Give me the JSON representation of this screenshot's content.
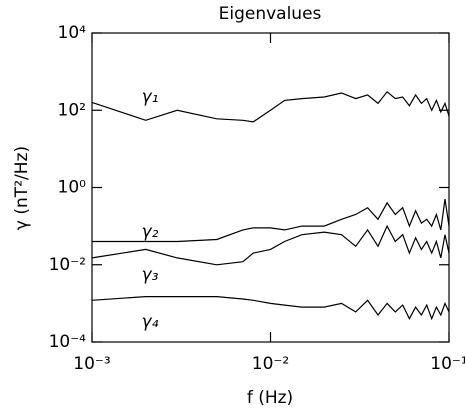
{
  "chart_data": {
    "type": "line",
    "title": "Eigenvalues",
    "x_label": "f (Hz)",
    "y_label": "γ (nT²/Hz)",
    "xscale": "log",
    "yscale": "log",
    "xlim": [
      0.001,
      0.1
    ],
    "ylim": [
      0.0001,
      10000
    ],
    "xticks": [
      {
        "value": 0.001,
        "label": "10⁻³"
      },
      {
        "value": 0.01,
        "label": "10⁻²"
      },
      {
        "value": 0.1,
        "label": "10⁻¹"
      }
    ],
    "yticks": [
      {
        "value": 0.0001,
        "label": "10⁻⁴"
      },
      {
        "value": 0.01,
        "label": "10⁻²"
      },
      {
        "value": 1,
        "label": "10⁰"
      },
      {
        "value": 100,
        "label": "10²"
      },
      {
        "value": 10000,
        "label": "10⁴"
      }
    ],
    "x": [
      0.001,
      0.002,
      0.003,
      0.005,
      0.007,
      0.008,
      0.01,
      0.012,
      0.015,
      0.02,
      0.025,
      0.03,
      0.035,
      0.04,
      0.045,
      0.05,
      0.055,
      0.06,
      0.065,
      0.07,
      0.075,
      0.08,
      0.085,
      0.09,
      0.095,
      0.1
    ],
    "series": [
      {
        "name": "γ₁",
        "color": "#000000",
        "values": [
          160,
          55,
          100,
          60,
          55,
          50,
          100,
          180,
          200,
          220,
          280,
          200,
          250,
          150,
          300,
          200,
          220,
          130,
          250,
          150,
          200,
          100,
          180,
          90,
          150,
          70
        ]
      },
      {
        "name": "γ₂",
        "color": "#000000",
        "values": [
          0.04,
          0.04,
          0.04,
          0.045,
          0.08,
          0.09,
          0.09,
          0.08,
          0.1,
          0.1,
          0.15,
          0.2,
          0.3,
          0.15,
          0.4,
          0.2,
          0.3,
          0.1,
          0.25,
          0.12,
          0.15,
          0.1,
          0.2,
          0.08,
          0.5,
          0.1
        ]
      },
      {
        "name": "γ₃",
        "color": "#000000",
        "values": [
          0.015,
          0.025,
          0.015,
          0.01,
          0.012,
          0.02,
          0.025,
          0.04,
          0.06,
          0.07,
          0.06,
          0.03,
          0.08,
          0.03,
          0.1,
          0.04,
          0.06,
          0.02,
          0.05,
          0.025,
          0.04,
          0.02,
          0.04,
          0.015,
          0.06,
          0.02
        ]
      },
      {
        "name": "γ₄",
        "color": "#000000",
        "values": [
          0.0012,
          0.0015,
          0.0015,
          0.0015,
          0.0013,
          0.0012,
          0.001,
          0.0009,
          0.0008,
          0.0008,
          0.001,
          0.0006,
          0.0012,
          0.0005,
          0.001,
          0.0006,
          0.0009,
          0.0004,
          0.0008,
          0.0005,
          0.0009,
          0.0004,
          0.0008,
          0.0005,
          0.001,
          0.0006
        ]
      }
    ]
  }
}
